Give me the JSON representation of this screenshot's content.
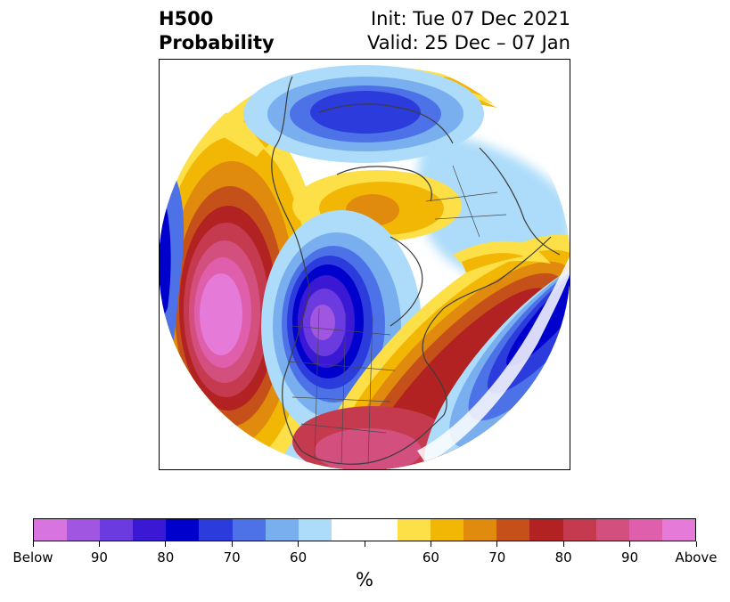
{
  "header": {
    "title_line1": "H500",
    "title_line2": "Probability",
    "init": "Init: Tue 07 Dec 2021",
    "valid": "Valid: 25 Dec – 07 Jan"
  },
  "colorbar": {
    "colors": [
      "#d874e0",
      "#a056e0",
      "#6c3be0",
      "#3a18d4",
      "#0000cc",
      "#2b3bdc",
      "#4d72e8",
      "#79afef",
      "#acdcfa",
      "#ffffff",
      "#ffffff",
      "#fde047",
      "#f2b705",
      "#e08a0e",
      "#c5501a",
      "#b22222",
      "#c63a50",
      "#d34f7e",
      "#df5fac",
      "#e57ad8"
    ],
    "tick_labels": [
      "Below",
      "90",
      "80",
      "70",
      "60",
      "",
      "60",
      "70",
      "80",
      "90",
      "Above"
    ],
    "unit": "%"
  }
}
